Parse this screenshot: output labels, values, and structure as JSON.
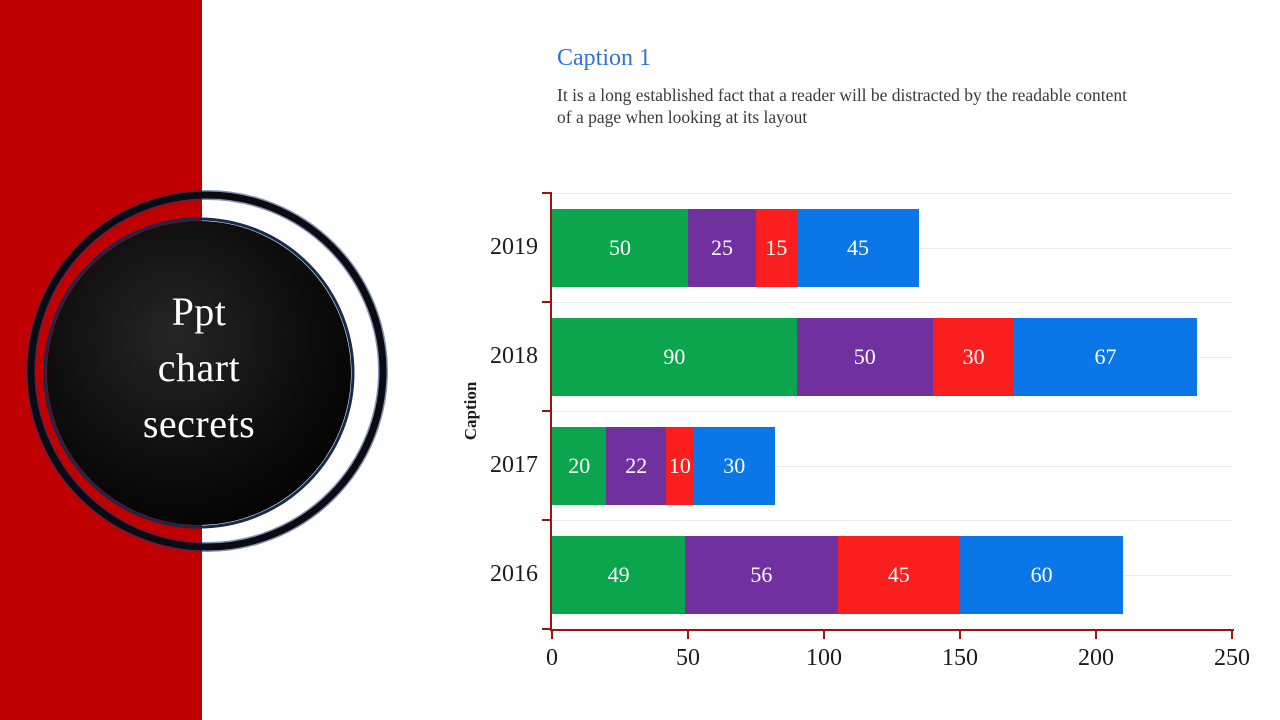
{
  "slide": {
    "badge": {
      "lines": [
        "Ppt",
        "chart",
        "secrets"
      ]
    },
    "caption": {
      "heading": "Caption 1",
      "body": "It is a long established fact that a reader will be distracted by the readable content of a page when looking at its layout"
    }
  },
  "chart_data": {
    "type": "bar",
    "orientation": "horizontal",
    "stacked": true,
    "categories": [
      "2019",
      "2018",
      "2017",
      "2016"
    ],
    "series": [
      {
        "name": "green-series",
        "color": "#0AA54C",
        "values": [
          50,
          90,
          20,
          49
        ]
      },
      {
        "name": "purple-series",
        "color": "#7030A0",
        "values": [
          25,
          50,
          22,
          56
        ]
      },
      {
        "name": "red-series",
        "color": "#FA1E1E",
        "values": [
          15,
          30,
          10,
          45
        ]
      },
      {
        "name": "blue-series",
        "color": "#0B76E8",
        "values": [
          45,
          67,
          30,
          60
        ]
      }
    ],
    "title": "",
    "xlabel": "",
    "ylabel": "Caption",
    "xlim": [
      0,
      250
    ],
    "xticks": [
      0,
      50,
      100,
      150,
      200,
      250
    ],
    "grid": "horizontal-minor",
    "legend": "none"
  },
  "colors": {
    "accent_band": "#C00000",
    "axis": "#9E1212",
    "gridline": "#ECECEC",
    "heading": "#2E75D8",
    "body_text": "#3A3A3A",
    "badge_disc": "#000000",
    "badge_text": "#FFFFFF"
  }
}
